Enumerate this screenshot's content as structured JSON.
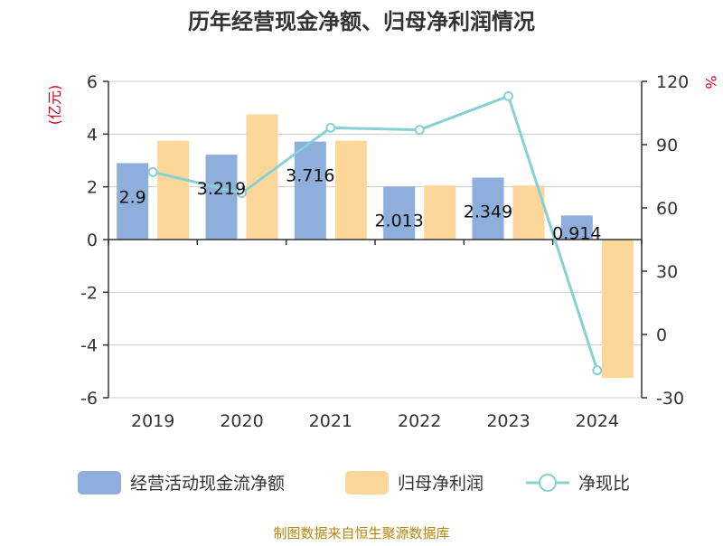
{
  "chart_data": {
    "type": "bar",
    "title": "历年经营现金净额、归母净利润情况",
    "categories": [
      "2019",
      "2020",
      "2021",
      "2022",
      "2023",
      "2024"
    ],
    "series": [
      {
        "name": "经营活动现金流净额",
        "kind": "bar",
        "axis": "left",
        "color": "#8eaedb",
        "values": [
          2.9,
          3.219,
          3.716,
          2.013,
          2.349,
          0.914
        ],
        "labels": [
          "2.9",
          "3.219",
          "3.716",
          "2.013",
          "2.349",
          "0.914"
        ]
      },
      {
        "name": "归母净利润",
        "kind": "bar",
        "axis": "left",
        "color": "#fdd69a",
        "values": [
          3.75,
          4.75,
          3.75,
          2.05,
          2.05,
          -5.25
        ]
      },
      {
        "name": "净现比",
        "kind": "line",
        "axis": "right",
        "color": "#86d0d6",
        "values": [
          77,
          67,
          98,
          97,
          113,
          -17
        ]
      }
    ],
    "y_left": {
      "unit": "(亿元)",
      "min": -6,
      "max": 6,
      "ticks": [
        "6",
        "4",
        "2",
        "0",
        "-2",
        "-4",
        "-6"
      ]
    },
    "y_right": {
      "unit": "%",
      "min": -30,
      "max": 120,
      "ticks": [
        "120",
        "90",
        "60",
        "30",
        "0",
        "-30"
      ]
    },
    "grid": true,
    "legend_position": "bottom",
    "source_note": "制图数据来自恒生聚源数据库"
  }
}
